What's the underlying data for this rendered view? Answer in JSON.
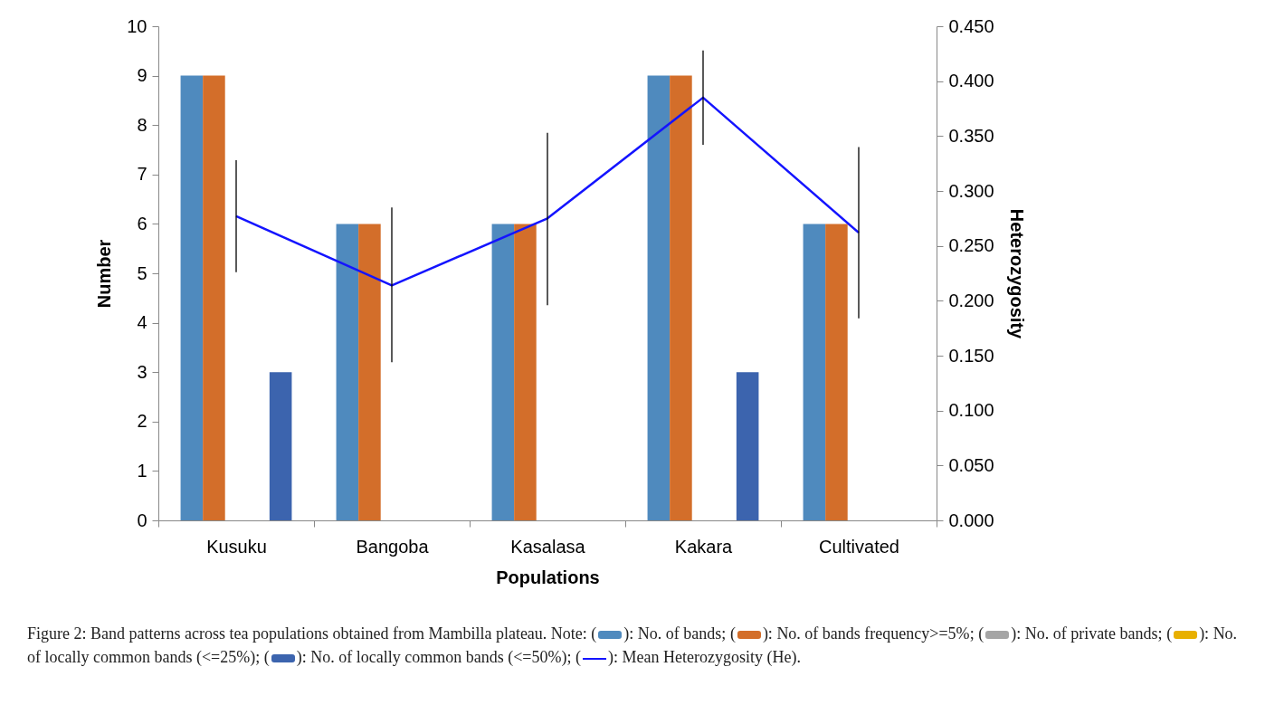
{
  "chart_data": {
    "type": "bar",
    "categories": [
      "Kusuku",
      "Bangoba",
      "Kasalasa",
      "Kakara",
      "Cultivated"
    ],
    "series": [
      {
        "name": "No. of bands",
        "color": "#4f8abe",
        "values": [
          9,
          6,
          6,
          9,
          6
        ]
      },
      {
        "name": "No. of bands frequency>=5%",
        "color": "#d36e2a",
        "values": [
          9,
          6,
          6,
          9,
          6
        ]
      },
      {
        "name": "No. of private bands",
        "color": "#a5a5a5",
        "values": [
          0,
          0,
          0,
          0,
          0
        ]
      },
      {
        "name": "No. of locally common bands (<=25%)",
        "color": "#e8b000",
        "values": [
          0,
          0,
          0,
          0,
          0
        ]
      },
      {
        "name": "No. of locally common bands (<=50%)",
        "color": "#3c64ae",
        "values": [
          3,
          0,
          0,
          3,
          0
        ]
      },
      {
        "name": "Mean Heterozygosity (He)",
        "type": "line",
        "axis": "y2",
        "color": "#1414ff",
        "values": [
          0.277,
          0.214,
          0.275,
          0.385,
          0.262
        ],
        "errors": [
          [
            0.226,
            0.328
          ],
          [
            0.144,
            0.285
          ],
          [
            0.196,
            0.353
          ],
          [
            0.342,
            0.428
          ],
          [
            0.184,
            0.34
          ]
        ]
      }
    ],
    "xlabel": "Populations",
    "ylabel": "Number",
    "y2label": "Heterozygosity",
    "ylim": [
      0,
      10
    ],
    "yticks": [
      0,
      1,
      2,
      3,
      4,
      5,
      6,
      7,
      8,
      9,
      10
    ],
    "y2lim": [
      0,
      0.45
    ],
    "y2ticks": [
      {
        "value": 0,
        "label": "0.000"
      },
      {
        "value": 0.05,
        "label": "0.050"
      },
      {
        "value": 0.1,
        "label": "0.100"
      },
      {
        "value": 0.15,
        "label": "0.150"
      },
      {
        "value": 0.2,
        "label": "0.200"
      },
      {
        "value": 0.25,
        "label": "0.250"
      },
      {
        "value": 0.3,
        "label": "0.300"
      },
      {
        "value": 0.35,
        "label": "0.350"
      },
      {
        "value": 0.4,
        "label": "0.400"
      },
      {
        "value": 0.45,
        "label": "0.450"
      }
    ],
    "grid": false,
    "legend": "bottom",
    "annotations": [
      "Figure 2: Band patterns across tea populations obtained from Mambilla plateau. Note:",
      "(",
      "):",
      ";",
      "."
    ]
  }
}
